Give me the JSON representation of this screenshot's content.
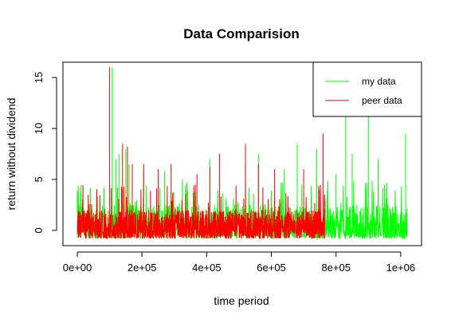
{
  "chart_data": {
    "type": "line",
    "title": "Data Comparision",
    "xlabel": "time period",
    "ylabel": "return without dividend",
    "xlim": [
      0,
      1020000
    ],
    "ylim": [
      -1.5,
      16.5
    ],
    "x_ticks": [
      {
        "value": 0,
        "label": "0e+00"
      },
      {
        "value": 200000,
        "label": "2e+05"
      },
      {
        "value": 400000,
        "label": "4e+05"
      },
      {
        "value": 600000,
        "label": "6e+05"
      },
      {
        "value": 800000,
        "label": "8e+05"
      },
      {
        "value": 1000000,
        "label": "1e+06"
      }
    ],
    "y_ticks": [
      {
        "value": 0,
        "label": "0"
      },
      {
        "value": 5,
        "label": "5"
      },
      {
        "value": 10,
        "label": "10"
      },
      {
        "value": 15,
        "label": "15"
      }
    ],
    "grid": false,
    "legend_position": "top-right",
    "series": [
      {
        "name": "my data",
        "color": "#00ff00",
        "x_range": [
          0,
          1020000
        ],
        "baseline_band": [
          -0.8,
          2.5
        ],
        "spikes": [
          {
            "x": 108000,
            "y": 16.0
          },
          {
            "x": 120000,
            "y": 7.0
          },
          {
            "x": 130000,
            "y": 7.5
          },
          {
            "x": 150000,
            "y": 8.0
          },
          {
            "x": 160000,
            "y": 6.5
          },
          {
            "x": 205000,
            "y": 6.0
          },
          {
            "x": 270000,
            "y": 5.8
          },
          {
            "x": 325000,
            "y": 5.0
          },
          {
            "x": 410000,
            "y": 7.0
          },
          {
            "x": 520000,
            "y": 6.5
          },
          {
            "x": 560000,
            "y": 7.5
          },
          {
            "x": 640000,
            "y": 6.0
          },
          {
            "x": 680000,
            "y": 8.5
          },
          {
            "x": 740000,
            "y": 8.0
          },
          {
            "x": 800000,
            "y": 5.5
          },
          {
            "x": 830000,
            "y": 11.5
          },
          {
            "x": 850000,
            "y": 7.5
          },
          {
            "x": 900000,
            "y": 12.0
          },
          {
            "x": 930000,
            "y": 7.0
          },
          {
            "x": 950000,
            "y": 4.5
          },
          {
            "x": 1015000,
            "y": 9.5
          }
        ]
      },
      {
        "name": "peer data",
        "color": "#ff0000",
        "x_range": [
          0,
          765000
        ],
        "baseline_band": [
          -0.8,
          2.0
        ],
        "spikes": [
          {
            "x": 100000,
            "y": 16.0
          },
          {
            "x": 140000,
            "y": 8.5
          },
          {
            "x": 155000,
            "y": 8.2
          },
          {
            "x": 170000,
            "y": 6.5
          },
          {
            "x": 205000,
            "y": 6.5
          },
          {
            "x": 250000,
            "y": 6.0
          },
          {
            "x": 290000,
            "y": 6.5
          },
          {
            "x": 370000,
            "y": 5.5
          },
          {
            "x": 410000,
            "y": 6.2
          },
          {
            "x": 440000,
            "y": 7.5
          },
          {
            "x": 520000,
            "y": 8.5
          },
          {
            "x": 560000,
            "y": 6.5
          },
          {
            "x": 610000,
            "y": 6.0
          },
          {
            "x": 700000,
            "y": 6.0
          },
          {
            "x": 760000,
            "y": 9.5
          }
        ]
      }
    ]
  }
}
